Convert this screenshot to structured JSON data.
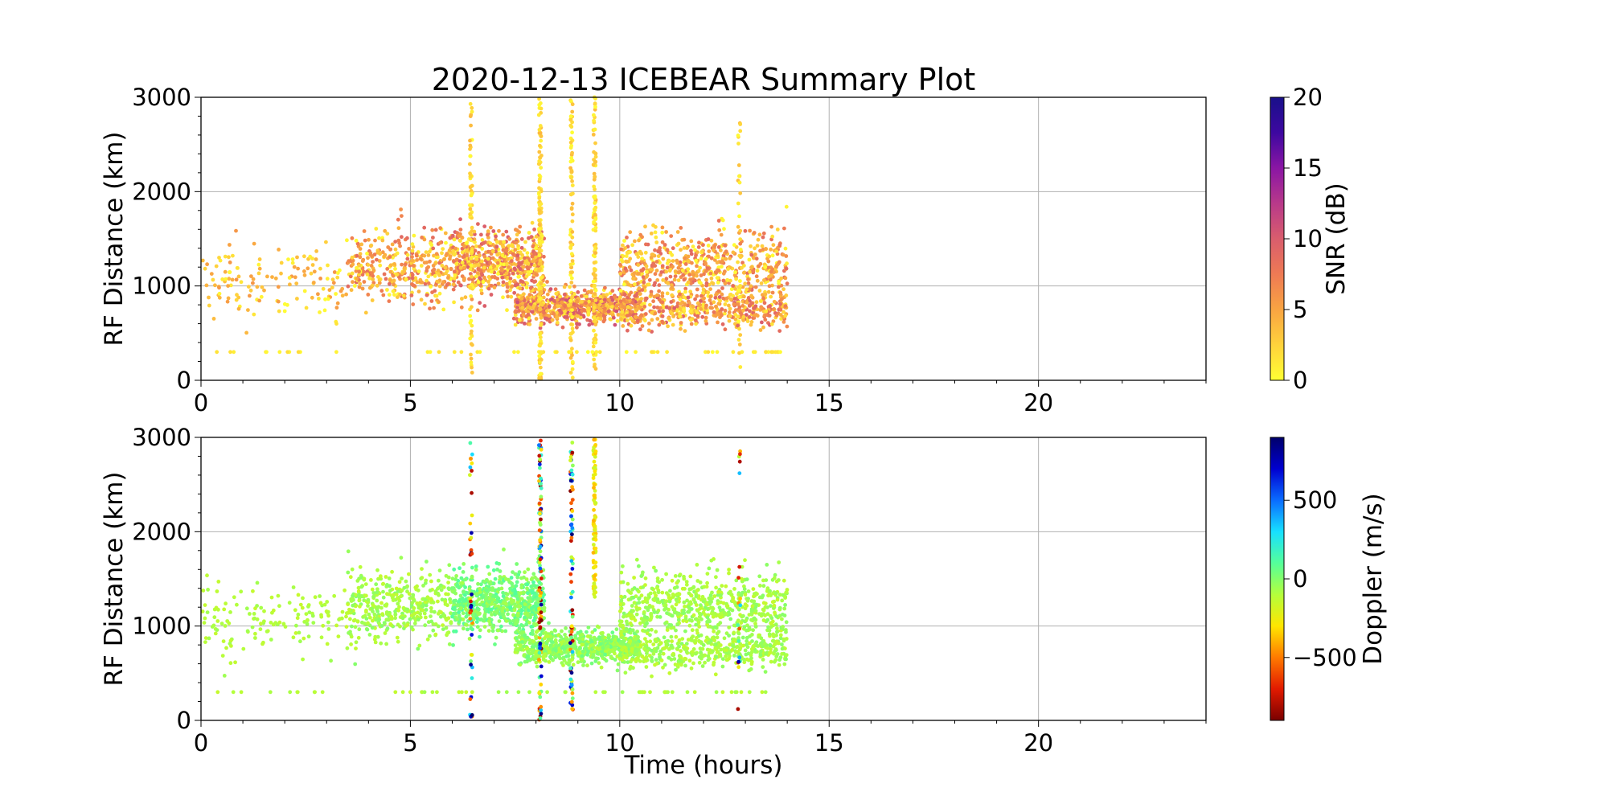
{
  "figure": {
    "title": "2020-12-13 ICEBEAR Summary Plot"
  },
  "chart_data": [
    {
      "type": "scatter",
      "panel": "top",
      "ylabel": "RF Distance (km)",
      "xlabel": "",
      "xlim": [
        0,
        24
      ],
      "ylim": [
        0,
        3000
      ],
      "x_ticks": [
        0,
        5,
        10,
        15,
        20
      ],
      "y_ticks": [
        0,
        1000,
        2000,
        3000
      ],
      "grid": true,
      "color_variable": "SNR",
      "colorbar": {
        "label": "SNR (dB)",
        "range": [
          0,
          20
        ],
        "ticks": [
          0,
          5,
          10,
          15,
          20
        ],
        "colormap": [
          "#ffff33",
          "#ffd23c",
          "#f9a442",
          "#ee7a54",
          "#d95d6d",
          "#b8398a",
          "#8a16a4",
          "#3d08a0",
          "#19108a"
        ]
      },
      "clusters": [
        {
          "x_range": [
            0.0,
            3.5
          ],
          "y_center": 1050,
          "y_spread": 380,
          "count": 140,
          "value_range": [
            0,
            6
          ]
        },
        {
          "x_range": [
            3.5,
            6.0
          ],
          "y_center": 1200,
          "y_spread": 380,
          "count": 380,
          "value_range": [
            0,
            9
          ]
        },
        {
          "x_range": [
            6.0,
            8.2
          ],
          "y_center": 1250,
          "y_spread": 340,
          "count": 640,
          "value_range": [
            0,
            10
          ]
        },
        {
          "x_range": [
            7.5,
            10.5
          ],
          "y_center": 780,
          "y_spread": 170,
          "count": 700,
          "value_range": [
            1,
            11
          ]
        },
        {
          "x_range": [
            10.0,
            14.0
          ],
          "y_center": 1200,
          "y_spread": 380,
          "count": 620,
          "value_range": [
            0,
            9
          ]
        },
        {
          "x_range": [
            10.0,
            14.0
          ],
          "y_center": 750,
          "y_spread": 200,
          "count": 420,
          "value_range": [
            1,
            10
          ]
        }
      ],
      "vertical_streaks": [
        {
          "x": 6.45,
          "y_range": [
            0,
            2950
          ],
          "count": 70
        },
        {
          "x": 8.1,
          "y_range": [
            0,
            3000
          ],
          "count": 130
        },
        {
          "x": 8.85,
          "y_range": [
            0,
            3000
          ],
          "count": 90
        },
        {
          "x": 9.4,
          "y_range": [
            0,
            3000
          ],
          "count": 120
        },
        {
          "x": 12.85,
          "y_range": [
            0,
            2900
          ],
          "count": 30
        }
      ],
      "baseline_points": {
        "y": 300,
        "x_range": [
          0.2,
          14.0
        ],
        "count": 55
      }
    },
    {
      "type": "scatter",
      "panel": "bottom",
      "ylabel": "RF Distance (km)",
      "xlabel": "Time (hours)",
      "xlim": [
        0,
        24
      ],
      "ylim": [
        0,
        3000
      ],
      "x_ticks": [
        0,
        5,
        10,
        15,
        20
      ],
      "y_ticks": [
        0,
        1000,
        2000,
        3000
      ],
      "grid": true,
      "color_variable": "Doppler",
      "colorbar": {
        "label": "Doppler (m/s)",
        "range": [
          -900,
          900
        ],
        "ticks": [
          -500,
          0,
          500
        ],
        "tick_labels": [
          "−500",
          "0",
          "500"
        ],
        "colormap": [
          "#7a0000",
          "#e11a00",
          "#ff7a00",
          "#ffe600",
          "#b4ff3c",
          "#55ff9a",
          "#17e0ff",
          "#0a6cff",
          "#0000d0",
          "#00006a"
        ]
      },
      "clusters": [
        {
          "x_range": [
            0.0,
            3.5
          ],
          "y_center": 1050,
          "y_spread": 380,
          "count": 140,
          "value_range": [
            -150,
            -50
          ]
        },
        {
          "x_range": [
            3.5,
            6.0
          ],
          "y_center": 1200,
          "y_spread": 380,
          "count": 380,
          "value_range": [
            -150,
            0
          ]
        },
        {
          "x_range": [
            6.0,
            8.2
          ],
          "y_center": 1250,
          "y_spread": 340,
          "count": 640,
          "value_range": [
            -80,
            120
          ]
        },
        {
          "x_range": [
            7.5,
            10.5
          ],
          "y_center": 780,
          "y_spread": 170,
          "count": 700,
          "value_range": [
            -120,
            60
          ]
        },
        {
          "x_range": [
            10.0,
            14.0
          ],
          "y_center": 1200,
          "y_spread": 380,
          "count": 620,
          "value_range": [
            -150,
            0
          ]
        },
        {
          "x_range": [
            10.0,
            14.0
          ],
          "y_center": 750,
          "y_spread": 200,
          "count": 420,
          "value_range": [
            -150,
            0
          ]
        }
      ],
      "vertical_streaks": [
        {
          "x": 6.45,
          "y_range": [
            0,
            2950
          ],
          "count": 45,
          "value_range": [
            -900,
            900
          ]
        },
        {
          "x": 8.1,
          "y_range": [
            0,
            3000
          ],
          "count": 110,
          "value_range": [
            -900,
            900
          ]
        },
        {
          "x": 8.85,
          "y_range": [
            0,
            3000
          ],
          "count": 80,
          "value_range": [
            -900,
            900
          ]
        },
        {
          "x": 9.4,
          "y_range": [
            1300,
            3000
          ],
          "count": 90,
          "value_range": [
            -400,
            -150
          ]
        },
        {
          "x": 12.85,
          "y_range": [
            0,
            2900
          ],
          "count": 20,
          "value_range": [
            -900,
            900
          ]
        }
      ],
      "baseline_points": {
        "y": 300,
        "x_range": [
          0.2,
          14.0
        ],
        "count": 55,
        "value_range": [
          -150,
          -50
        ]
      }
    }
  ]
}
